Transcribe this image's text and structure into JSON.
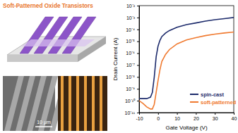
{
  "figure": {
    "title": "Soft-Patterned Oxide Transistors",
    "scale_bar": "10 μm"
  },
  "chart_data": {
    "type": "line",
    "x_label": "Gate Voltage (V)",
    "y_label": "Drain Current (A)",
    "log": "y",
    "legend": "lower right",
    "x": [
      -10,
      -8,
      -6,
      -4,
      -3,
      -2,
      -1,
      0,
      1,
      2,
      4,
      6,
      10,
      15,
      20,
      25,
      30,
      35,
      40
    ],
    "series": [
      {
        "name": "spin-cast",
        "color": "#1c2a6b",
        "values": [
          1.5e-10,
          1.5e-10,
          1.5e-10,
          2e-10,
          5e-10,
          1e-08,
          5e-07,
          4e-06,
          1.2e-05,
          2.5e-05,
          5e-05,
          8e-05,
          0.00015,
          0.00025,
          0.00035,
          0.0005,
          0.00065,
          0.0008,
          0.001
        ]
      },
      {
        "name": "soft-patterned",
        "color": "#f07a30",
        "values": [
          1e-10,
          6e-11,
          3e-11,
          2e-11,
          2e-11,
          5e-11,
          5e-10,
          5e-09,
          4e-08,
          2e-07,
          8e-07,
          2e-06,
          6e-06,
          1.3e-05,
          2e-05,
          3e-05,
          4e-05,
          5e-05,
          6e-05
        ]
      }
    ],
    "xlim": [
      -10,
      40
    ],
    "xticks": [
      -10,
      0,
      10,
      20,
      30,
      40
    ],
    "ylim": [
      1e-11,
      0.01
    ],
    "yticks": [
      {
        "value": 1e-11,
        "label": "10⁻¹¹"
      },
      {
        "value": 1e-10,
        "label": "10⁻¹⁰"
      },
      {
        "value": 1e-09,
        "label": "10⁻⁹"
      },
      {
        "value": 1e-08,
        "label": "10⁻⁸"
      },
      {
        "value": 1e-07,
        "label": "10⁻⁷"
      },
      {
        "value": 1e-06,
        "label": "10⁻⁶"
      },
      {
        "value": 1e-05,
        "label": "10⁻⁵"
      },
      {
        "value": 0.0001,
        "label": "10⁻⁴"
      },
      {
        "value": 0.001,
        "label": "10⁻³"
      },
      {
        "value": 0.01,
        "label": "10⁻²"
      }
    ]
  }
}
